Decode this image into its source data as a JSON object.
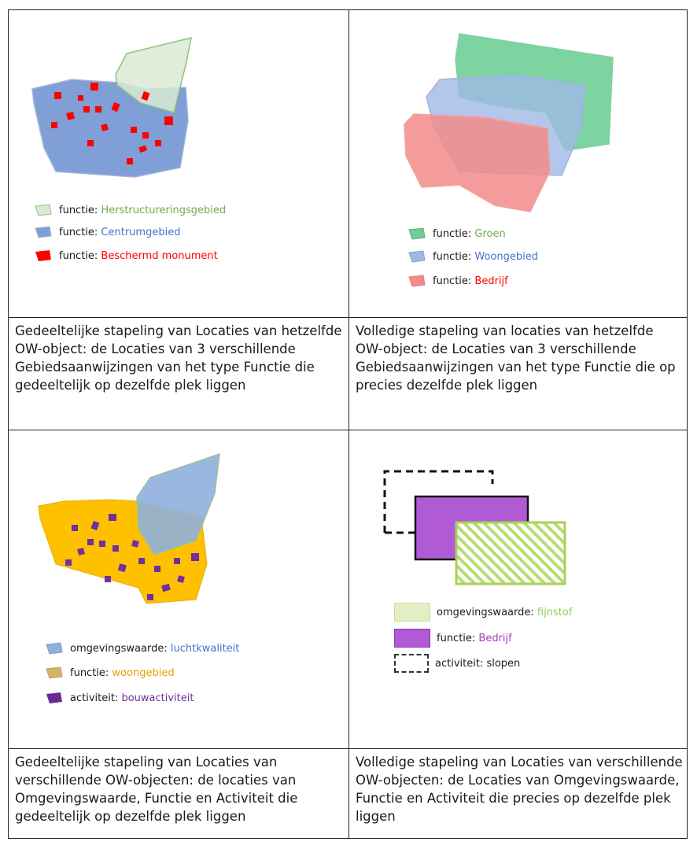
{
  "panels": [
    {
      "id": "top-left",
      "legend": [
        {
          "key": "functie: ",
          "value": "Herstructureringsgebied",
          "color": "#70ad47",
          "fill": "#d9ead3"
        },
        {
          "key": "functie: ",
          "value": "Centrumgebied",
          "color": "#4472c4",
          "fill": "#7f9fd6"
        },
        {
          "key": "functie: ",
          "value": "Beschermd monument",
          "color": "#ff0000",
          "fill": "#ff0000"
        }
      ],
      "caption": "Gedeeltelijke stapeling van Locaties van hetzelfde OW-object: de Locaties van 3 verschillende Gebiedsaanwijzingen van het type Functie die gedeeltelijk op dezelfde plek liggen"
    },
    {
      "id": "top-right",
      "legend": [
        {
          "key": "functie: ",
          "value": "Groen",
          "color": "#70ad47",
          "fill": "#6fcf97"
        },
        {
          "key": "functie: ",
          "value": "Woongebied",
          "color": "#4472c4",
          "fill": "#9fb9e6"
        },
        {
          "key": "functie: ",
          "value": "Bedrijf",
          "color": "#ff0000",
          "fill": "#f28b8b"
        }
      ],
      "caption": "Volledige stapeling van locaties van hetzelfde OW-object: de Locaties van 3 verschillende Gebiedsaanwijzingen van het type Functie die op precies dezelfde plek liggen"
    },
    {
      "id": "bottom-left",
      "legend": [
        {
          "key": "omgevingswaarde: ",
          "value": "luchtkwaliteit",
          "color": "#4472c4",
          "fill": "#8fb0dc"
        },
        {
          "key": "functie: ",
          "value": "woongebied",
          "color": "#e0a000",
          "fill": "#d4b36a"
        },
        {
          "key": "activiteit: ",
          "value": "bouwactiviteit",
          "color": "#7030a0",
          "fill": "#6a2c91"
        }
      ],
      "caption": "Gedeeltelijke stapeling van Locaties van verschillende OW-objecten: de locaties van Omgevingswaarde, Functie en Activiteit die gedeeltelijk op dezelfde plek liggen"
    },
    {
      "id": "bottom-right",
      "legend": [
        {
          "key": "omgevingswaarde: ",
          "value": "fijnstof",
          "color": "#92d050",
          "fill": "#e2efc5"
        },
        {
          "key": "functie: ",
          "value": "Bedrijf",
          "color": "#a040c0",
          "fill": "#b05ad6"
        },
        {
          "key": "activiteit: ",
          "value": "slopen",
          "color": "#1a1a1a",
          "fill": "#ffffff"
        }
      ],
      "caption": "Volledige stapeling van Locaties van verschillende OW-objecten: de Locaties van Omgevingswaarde, Functie en Activiteit die precies op dezelfde plek liggen"
    }
  ]
}
